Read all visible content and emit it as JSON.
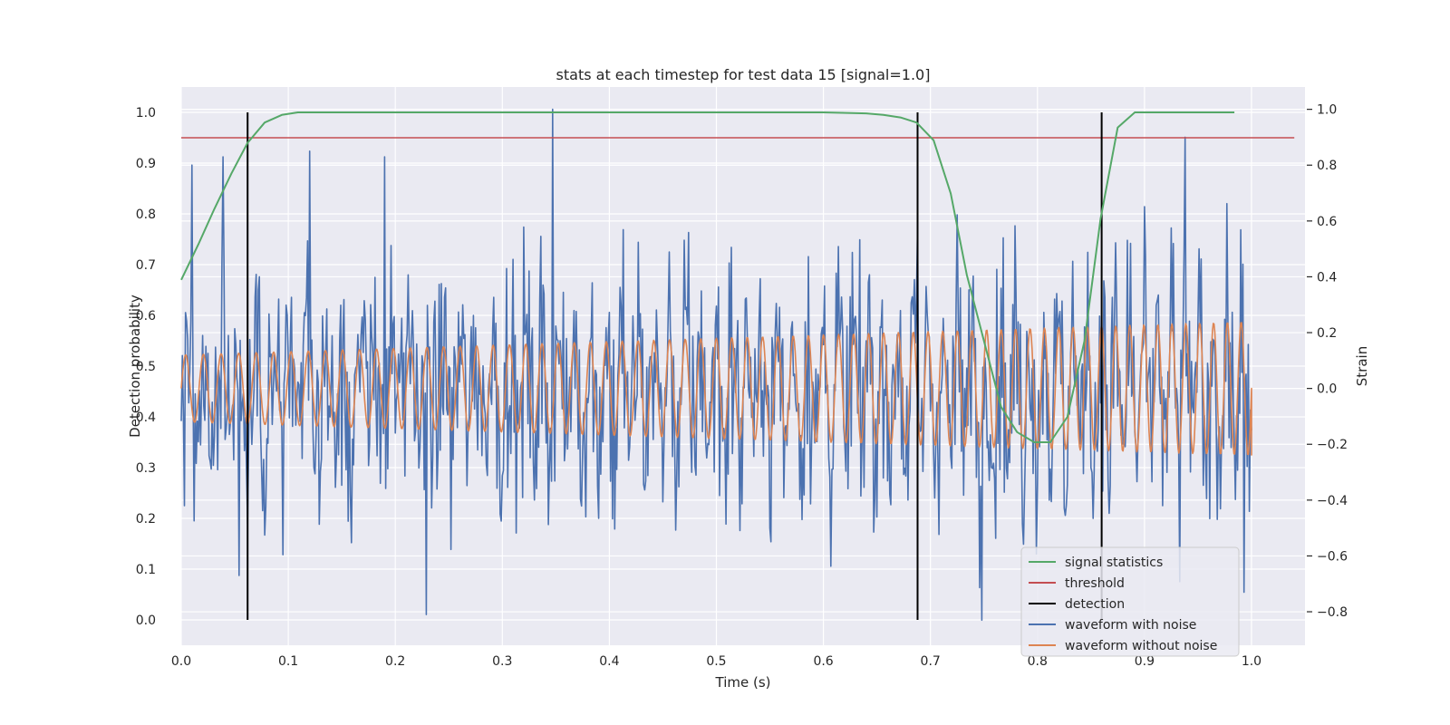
{
  "chart_data": {
    "type": "line",
    "title": "stats at each timestep for test data 15 [signal=1.0]",
    "xlabel": "Time (s)",
    "ylabel_left": "Detection probability",
    "ylabel_right": "Strain",
    "xlim": [
      0.0,
      1.05
    ],
    "ylim_left": [
      -0.05,
      1.05
    ],
    "ylim_right": [
      -0.92,
      1.08
    ],
    "xticks": [
      "0.0",
      "0.1",
      "0.2",
      "0.3",
      "0.4",
      "0.5",
      "0.6",
      "0.7",
      "0.8",
      "0.9",
      "1.0"
    ],
    "yticks_left": [
      "0.0",
      "0.1",
      "0.2",
      "0.3",
      "0.4",
      "0.5",
      "0.6",
      "0.7",
      "0.8",
      "0.9",
      "1.0"
    ],
    "yticks_right": [
      "−0.8",
      "−0.6",
      "−0.4",
      "−0.2",
      "0.0",
      "0.2",
      "0.4",
      "0.6",
      "0.8",
      "1.0"
    ],
    "yticks_right_values": [
      -0.8,
      -0.6,
      -0.4,
      -0.2,
      0.0,
      0.2,
      0.4,
      0.6,
      0.8,
      1.0
    ],
    "grid": true,
    "legend_position": "lower-right",
    "series": [
      {
        "name": "signal statistics",
        "axis": "left",
        "color": "#55a868",
        "x": [
          0.0,
          0.016,
          0.031,
          0.047,
          0.062,
          0.078,
          0.094,
          0.109,
          0.125,
          0.2,
          0.3,
          0.4,
          0.5,
          0.6,
          0.64,
          0.656,
          0.672,
          0.687,
          0.703,
          0.719,
          0.734,
          0.75,
          0.766,
          0.781,
          0.797,
          0.812,
          0.828,
          0.844,
          0.859,
          0.875,
          0.891,
          0.906,
          0.984
        ],
        "y": [
          0.67,
          0.74,
          0.81,
          0.88,
          0.94,
          0.98,
          0.995,
          1.0,
          1.0,
          1.0,
          1.0,
          1.0,
          1.0,
          1.0,
          0.998,
          0.995,
          0.99,
          0.98,
          0.945,
          0.84,
          0.68,
          0.55,
          0.42,
          0.37,
          0.35,
          0.35,
          0.4,
          0.55,
          0.79,
          0.97,
          1.0,
          1.0,
          1.0
        ]
      },
      {
        "name": "threshold",
        "axis": "left",
        "color": "#c44e52",
        "x": [
          0.0,
          1.04
        ],
        "y": [
          0.95,
          0.95
        ]
      },
      {
        "name": "detection",
        "axis": "left",
        "color": "#000000",
        "detections_x": [
          0.062,
          0.688,
          0.86
        ],
        "y_range": [
          0.0,
          1.0
        ]
      },
      {
        "name": "waveform with noise",
        "axis": "right",
        "color": "#4c72b0",
        "x_range": [
          0.0,
          1.0
        ],
        "n_points": 1000,
        "peaks": [
          {
            "x": 0.003,
            "y": -0.42
          },
          {
            "x": 0.01,
            "y": 0.8
          },
          {
            "x": 0.039,
            "y": 0.83
          },
          {
            "x": 0.054,
            "y": -0.67
          },
          {
            "x": 0.12,
            "y": 0.85
          },
          {
            "x": 0.19,
            "y": 0.83
          },
          {
            "x": 0.229,
            "y": -0.81
          },
          {
            "x": 0.347,
            "y": 1.0
          },
          {
            "x": 0.688,
            "y": 0.58
          },
          {
            "x": 0.748,
            "y": -0.83
          },
          {
            "x": 0.938,
            "y": 0.9
          },
          {
            "x": 0.993,
            "y": -0.73
          },
          {
            "x": 1.0,
            "y": -0.15
          }
        ]
      },
      {
        "name": "waveform without noise",
        "axis": "right",
        "color": "#dd8452",
        "x_range": [
          0.0,
          1.0
        ],
        "approx_cycles": 60,
        "amplitude_start": 0.12,
        "amplitude_end": 0.24,
        "end_value": -0.24
      }
    ]
  },
  "legend": {
    "items": [
      {
        "label": "signal statistics",
        "color": "#55a868"
      },
      {
        "label": "threshold",
        "color": "#c44e52"
      },
      {
        "label": "detection",
        "color": "#000000"
      },
      {
        "label": "waveform with noise",
        "color": "#4c72b0"
      },
      {
        "label": "waveform without noise",
        "color": "#dd8452"
      }
    ]
  }
}
